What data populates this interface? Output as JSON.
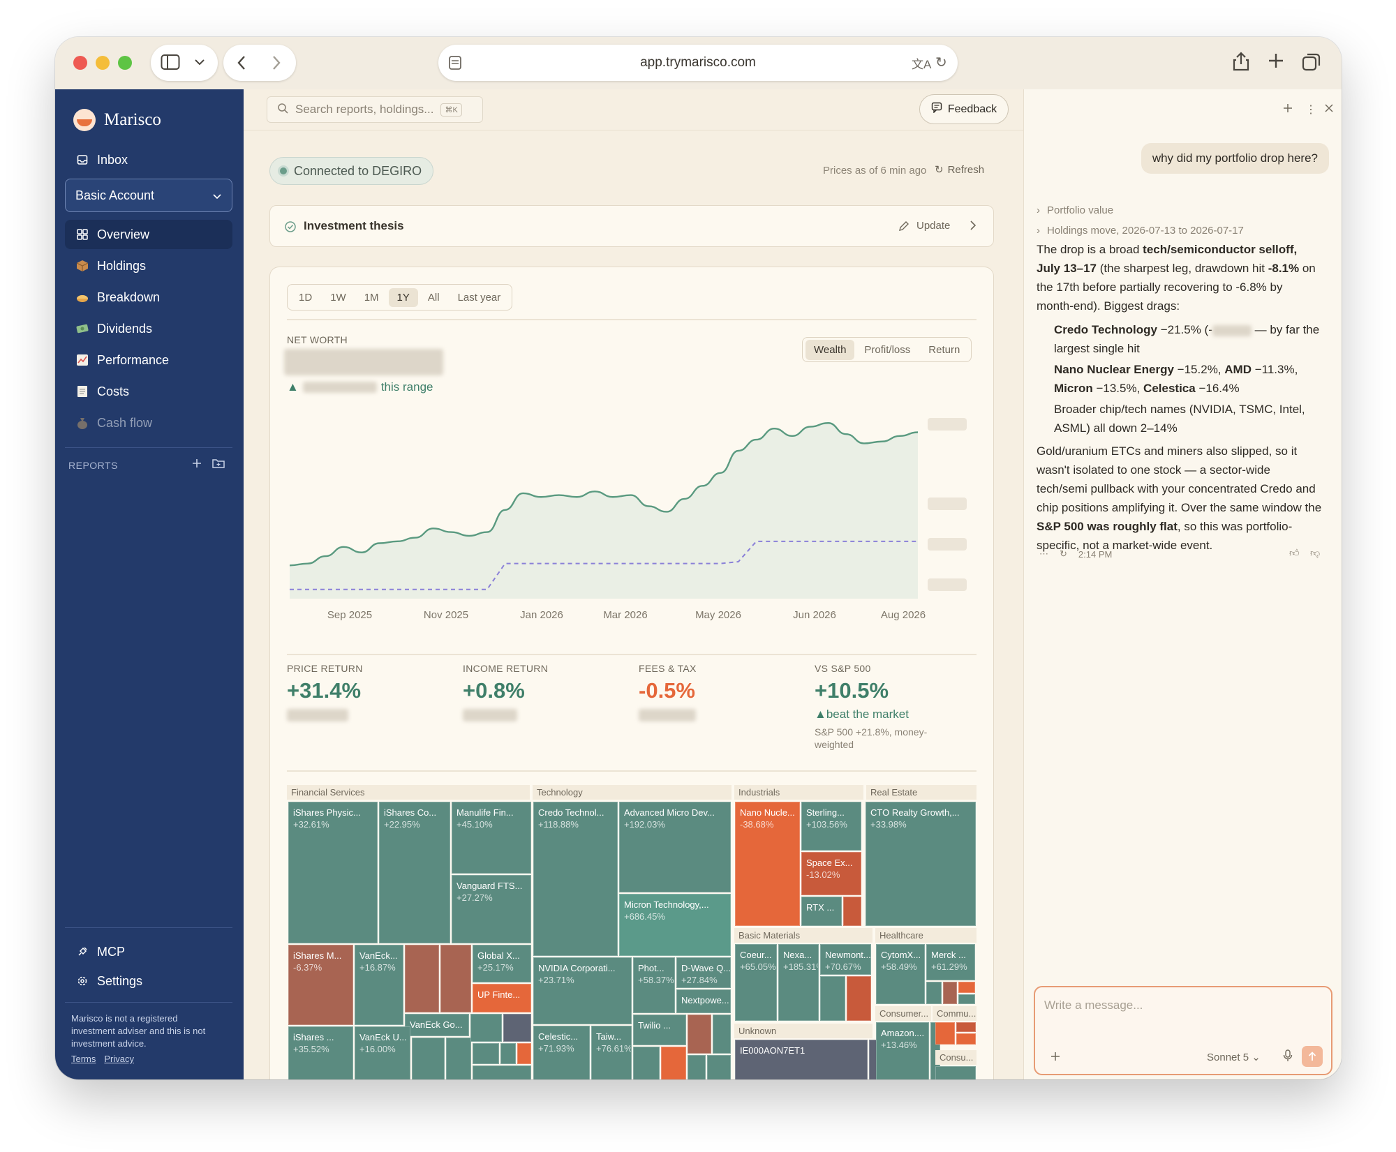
{
  "browser": {
    "url": "app.trymarisco.com"
  },
  "sidebar": {
    "brand": "Marisco",
    "inbox": "Inbox",
    "account": "Basic Account",
    "items": [
      {
        "label": "Overview",
        "icon": "grid-icon",
        "active": true
      },
      {
        "label": "Holdings",
        "icon": "package-icon"
      },
      {
        "label": "Breakdown",
        "icon": "pie-icon"
      },
      {
        "label": "Dividends",
        "icon": "money-icon"
      },
      {
        "label": "Performance",
        "icon": "chart-icon"
      },
      {
        "label": "Costs",
        "icon": "receipt-icon"
      },
      {
        "label": "Cash flow",
        "icon": "bag-icon",
        "muted": true
      }
    ],
    "reports_label": "REPORTS",
    "mcp": "MCP",
    "settings": "Settings",
    "disclaimer": "Marisco is not a registered investment adviser and this is not investment advice.",
    "terms": "Terms",
    "privacy": "Privacy"
  },
  "header": {
    "search_placeholder": "Search reports, holdings...",
    "search_kbd": "⌘K",
    "feedback": "Feedback"
  },
  "status": {
    "connection": "Connected to DEGIRO",
    "prices": "Prices as of 6 min ago",
    "refresh": "Refresh"
  },
  "thesis": {
    "title": "Investment thesis",
    "update": "Update"
  },
  "ranges": [
    "1D",
    "1W",
    "1M",
    "1Y",
    "All",
    "Last year"
  ],
  "active_range": "1Y",
  "networth": {
    "label": "NET WORTH",
    "range_suffix": "this range"
  },
  "views": [
    "Wealth",
    "Profit/loss",
    "Return"
  ],
  "chart_data": {
    "type": "line",
    "x_ticks": [
      "Sep 2025",
      "Nov 2025",
      "Jan 2026",
      "Mar 2026",
      "May 2026",
      "Jun 2026",
      "Aug 2026"
    ],
    "series": [
      {
        "values": [
          0.18,
          0.19,
          0.23,
          0.28,
          0.25,
          0.3,
          0.31,
          0.33,
          0.38,
          0.36,
          0.34,
          0.36,
          0.48,
          0.57,
          0.55,
          0.56,
          0.55,
          0.58,
          0.55,
          0.56,
          0.5,
          0.47,
          0.54,
          0.61,
          0.68,
          0.8,
          0.86,
          0.92,
          0.88,
          0.93,
          0.95,
          0.89,
          0.84,
          0.85,
          0.88,
          0.9
        ]
      },
      {
        "values": [
          0.05,
          0.05,
          0.05,
          0.05,
          0.05,
          0.05,
          0.05,
          0.05,
          0.05,
          0.05,
          0.05,
          0.05,
          0.19,
          0.19,
          0.19,
          0.19,
          0.19,
          0.19,
          0.19,
          0.19,
          0.19,
          0.19,
          0.19,
          0.19,
          0.19,
          0.2,
          0.31,
          0.31,
          0.31,
          0.31,
          0.31,
          0.31,
          0.31,
          0.31,
          0.31,
          0.31
        ],
        "dashed": true
      }
    ]
  },
  "metrics": [
    {
      "label": "PRICE RETURN",
      "value": "+31.4%",
      "color": "#3f7f69"
    },
    {
      "label": "INCOME RETURN",
      "value": "+0.8%",
      "color": "#3f7f69"
    },
    {
      "label": "FEES & TAX",
      "value": "-0.5%",
      "color": "#e5673a"
    },
    {
      "label": "VS S&P 500",
      "value": "+10.5%",
      "color": "#3f7f69",
      "note": "beat the market",
      "sub": "S&P 500 +21.8%, money-weighted"
    }
  ],
  "treemap": {
    "sections": [
      "Financial Services",
      "Technology",
      "Industrials",
      "Real Estate",
      "Basic Materials",
      "Healthcare",
      "Unknown",
      "Consumer...",
      "Commu...",
      "Consu..."
    ],
    "tiles": [
      {
        "name": "iShares Physic...",
        "pct": "+32.61%"
      },
      {
        "name": "iShares Co...",
        "pct": "+22.95%"
      },
      {
        "name": "Manulife Fin...",
        "pct": "+45.10%"
      },
      {
        "name": "Vanguard FTS...",
        "pct": "+27.27%"
      },
      {
        "name": "iShares M...",
        "pct": "-6.37%"
      },
      {
        "name": "VanEck...",
        "pct": "+16.87%"
      },
      {
        "name": "Global X...",
        "pct": "+25.17%"
      },
      {
        "name": "UP Finte...",
        "pct": ""
      },
      {
        "name": "VanEck Go...",
        "pct": ""
      },
      {
        "name": "iShares ...",
        "pct": "+35.52%"
      },
      {
        "name": "VanEck U...",
        "pct": "+16.00%"
      },
      {
        "name": "Credo Technol...",
        "pct": "+118.88%"
      },
      {
        "name": "Advanced Micro Dev...",
        "pct": "+192.03%"
      },
      {
        "name": "Micron Technology,...",
        "pct": "+686.45%"
      },
      {
        "name": "NVIDIA Corporati...",
        "pct": "+23.71%"
      },
      {
        "name": "Phot...",
        "pct": "+58.37%"
      },
      {
        "name": "D-Wave Q...",
        "pct": "+27.84%"
      },
      {
        "name": "Nextpowe...",
        "pct": ""
      },
      {
        "name": "Celestic...",
        "pct": "+71.93%"
      },
      {
        "name": "Taiw...",
        "pct": "+76.61%"
      },
      {
        "name": "Twilio ...",
        "pct": ""
      },
      {
        "name": "Nano Nucle...",
        "pct": "-38.68%"
      },
      {
        "name": "Sterling...",
        "pct": "+103.56%"
      },
      {
        "name": "Space Ex...",
        "pct": "-13.02%"
      },
      {
        "name": "RTX ...",
        "pct": ""
      },
      {
        "name": "CTO Realty Growth,...",
        "pct": "+33.98%"
      },
      {
        "name": "Coeur...",
        "pct": "+65.05%"
      },
      {
        "name": "Nexa...",
        "pct": "+185.31%"
      },
      {
        "name": "Newmont...",
        "pct": "+70.67%"
      },
      {
        "name": "CytomX...",
        "pct": "+58.49%"
      },
      {
        "name": "Merck ...",
        "pct": "+61.29%"
      },
      {
        "name": "IE000AON7ET1",
        "pct": ""
      },
      {
        "name": "Amazon....",
        "pct": "+13.46%"
      }
    ]
  },
  "chat": {
    "question": "why did my portfolio drop here?",
    "tool1": "Portfolio value",
    "tool2": "Holdings move, 2026-07-13 to 2026-07-17",
    "time": "2:14 PM",
    "input_placeholder": "Write a message...",
    "model": "Sonnet 5",
    "answer": {
      "p1_a": "The drop is a broad ",
      "p1_b": "tech/semiconductor selloff, July 13–17",
      "p1_c": " (the sharpest leg, drawdown hit ",
      "p1_d": "-8.1%",
      "p1_e": " on the 17th before partially recovering to -6.8% by month-end). Biggest drags:",
      "b1_a": "Credo Technology",
      "b1_b": " −21.5% (-",
      "b1_c": " — by far the largest single hit",
      "b2_a": "Nano Nuclear Energy",
      "b2_b": " −15.2%, ",
      "b2_c": "AMD",
      "b2_d": " −11.3%, ",
      "b2_e": "Micron",
      "b2_f": " −13.5%, ",
      "b2_g": "Celestica",
      "b2_h": " −16.4%",
      "b3": "Broader chip/tech names (NVIDIA, TSMC, Intel, ASML) all down 2–14%",
      "p2_a": "Gold/uranium ETCs and miners also slipped, so it wasn't isolated to one stock — a sector-wide tech/semi pullback with your concentrated Credo and chip positions amplifying it. Over the same window the ",
      "p2_b": "S&P 500 was roughly flat",
      "p2_c": ", so this was portfolio-specific, not a market-wide event."
    }
  },
  "colors": {
    "navy": "#233a6a",
    "accent": "#e5673a",
    "teal": "#5b8b80",
    "green": "#3f7f69"
  }
}
